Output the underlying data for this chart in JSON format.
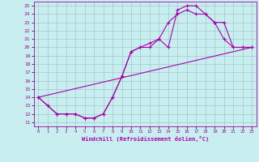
{
  "xlabel": "Windchill (Refroidissement éolien,°C)",
  "xlim": [
    -0.5,
    23.5
  ],
  "ylim": [
    10.5,
    25.5
  ],
  "xticks": [
    0,
    1,
    2,
    3,
    4,
    5,
    6,
    7,
    8,
    9,
    10,
    11,
    12,
    13,
    14,
    15,
    16,
    17,
    18,
    19,
    20,
    21,
    22,
    23
  ],
  "yticks": [
    11,
    12,
    13,
    14,
    15,
    16,
    17,
    18,
    19,
    20,
    21,
    22,
    23,
    24,
    25
  ],
  "bg_color": "#c8eef0",
  "line_color": "#aa00aa",
  "grid_color": "#a0c8cc",
  "line1_x": [
    0,
    1,
    2,
    3,
    4,
    5,
    6,
    7,
    8,
    9,
    10,
    11,
    12,
    13,
    14,
    15,
    16,
    17,
    18,
    19,
    20,
    21,
    22,
    23
  ],
  "line1_y": [
    14,
    13,
    12,
    12,
    12,
    11.5,
    11.5,
    12,
    14,
    16.5,
    19.5,
    20,
    20,
    21,
    20,
    24.5,
    25,
    25,
    24,
    23,
    21,
    20,
    20,
    20
  ],
  "line2_x": [
    0,
    1,
    2,
    3,
    4,
    5,
    6,
    7,
    8,
    9,
    10,
    11,
    12,
    13,
    14,
    15,
    16,
    17,
    18,
    19,
    20,
    21,
    22,
    23
  ],
  "line2_y": [
    14,
    13,
    12,
    12,
    12,
    11.5,
    11.5,
    12,
    14,
    16.5,
    19.5,
    20,
    20.5,
    21,
    23,
    24,
    24.5,
    24,
    24,
    23,
    23,
    20,
    20,
    20
  ],
  "line3_x": [
    0,
    23
  ],
  "line3_y": [
    14,
    20
  ],
  "marker": "+"
}
